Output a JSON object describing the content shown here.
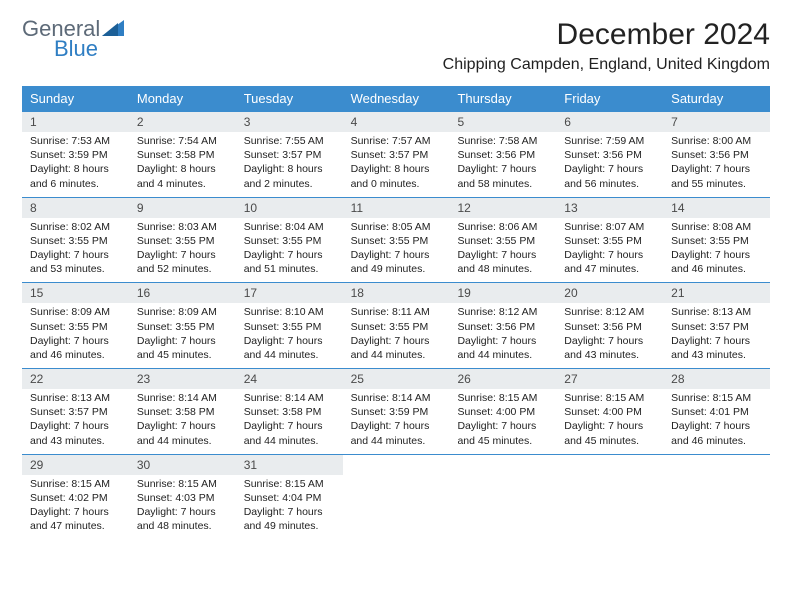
{
  "logo": {
    "word1": "General",
    "word2": "Blue"
  },
  "header": {
    "title": "December 2024",
    "subtitle": "Chipping Campden, England, United Kingdom"
  },
  "calendar": {
    "header_bg": "#3b8cce",
    "header_fg": "#ffffff",
    "daynum_bg": "#e9ecee",
    "week_border": "#3b8cce",
    "day_names": [
      "Sunday",
      "Monday",
      "Tuesday",
      "Wednesday",
      "Thursday",
      "Friday",
      "Saturday"
    ],
    "days": [
      {
        "n": "1",
        "sunrise": "Sunrise: 7:53 AM",
        "sunset": "Sunset: 3:59 PM",
        "daylight": "Daylight: 8 hours and 6 minutes."
      },
      {
        "n": "2",
        "sunrise": "Sunrise: 7:54 AM",
        "sunset": "Sunset: 3:58 PM",
        "daylight": "Daylight: 8 hours and 4 minutes."
      },
      {
        "n": "3",
        "sunrise": "Sunrise: 7:55 AM",
        "sunset": "Sunset: 3:57 PM",
        "daylight": "Daylight: 8 hours and 2 minutes."
      },
      {
        "n": "4",
        "sunrise": "Sunrise: 7:57 AM",
        "sunset": "Sunset: 3:57 PM",
        "daylight": "Daylight: 8 hours and 0 minutes."
      },
      {
        "n": "5",
        "sunrise": "Sunrise: 7:58 AM",
        "sunset": "Sunset: 3:56 PM",
        "daylight": "Daylight: 7 hours and 58 minutes."
      },
      {
        "n": "6",
        "sunrise": "Sunrise: 7:59 AM",
        "sunset": "Sunset: 3:56 PM",
        "daylight": "Daylight: 7 hours and 56 minutes."
      },
      {
        "n": "7",
        "sunrise": "Sunrise: 8:00 AM",
        "sunset": "Sunset: 3:56 PM",
        "daylight": "Daylight: 7 hours and 55 minutes."
      },
      {
        "n": "8",
        "sunrise": "Sunrise: 8:02 AM",
        "sunset": "Sunset: 3:55 PM",
        "daylight": "Daylight: 7 hours and 53 minutes."
      },
      {
        "n": "9",
        "sunrise": "Sunrise: 8:03 AM",
        "sunset": "Sunset: 3:55 PM",
        "daylight": "Daylight: 7 hours and 52 minutes."
      },
      {
        "n": "10",
        "sunrise": "Sunrise: 8:04 AM",
        "sunset": "Sunset: 3:55 PM",
        "daylight": "Daylight: 7 hours and 51 minutes."
      },
      {
        "n": "11",
        "sunrise": "Sunrise: 8:05 AM",
        "sunset": "Sunset: 3:55 PM",
        "daylight": "Daylight: 7 hours and 49 minutes."
      },
      {
        "n": "12",
        "sunrise": "Sunrise: 8:06 AM",
        "sunset": "Sunset: 3:55 PM",
        "daylight": "Daylight: 7 hours and 48 minutes."
      },
      {
        "n": "13",
        "sunrise": "Sunrise: 8:07 AM",
        "sunset": "Sunset: 3:55 PM",
        "daylight": "Daylight: 7 hours and 47 minutes."
      },
      {
        "n": "14",
        "sunrise": "Sunrise: 8:08 AM",
        "sunset": "Sunset: 3:55 PM",
        "daylight": "Daylight: 7 hours and 46 minutes."
      },
      {
        "n": "15",
        "sunrise": "Sunrise: 8:09 AM",
        "sunset": "Sunset: 3:55 PM",
        "daylight": "Daylight: 7 hours and 46 minutes."
      },
      {
        "n": "16",
        "sunrise": "Sunrise: 8:09 AM",
        "sunset": "Sunset: 3:55 PM",
        "daylight": "Daylight: 7 hours and 45 minutes."
      },
      {
        "n": "17",
        "sunrise": "Sunrise: 8:10 AM",
        "sunset": "Sunset: 3:55 PM",
        "daylight": "Daylight: 7 hours and 44 minutes."
      },
      {
        "n": "18",
        "sunrise": "Sunrise: 8:11 AM",
        "sunset": "Sunset: 3:55 PM",
        "daylight": "Daylight: 7 hours and 44 minutes."
      },
      {
        "n": "19",
        "sunrise": "Sunrise: 8:12 AM",
        "sunset": "Sunset: 3:56 PM",
        "daylight": "Daylight: 7 hours and 44 minutes."
      },
      {
        "n": "20",
        "sunrise": "Sunrise: 8:12 AM",
        "sunset": "Sunset: 3:56 PM",
        "daylight": "Daylight: 7 hours and 43 minutes."
      },
      {
        "n": "21",
        "sunrise": "Sunrise: 8:13 AM",
        "sunset": "Sunset: 3:57 PM",
        "daylight": "Daylight: 7 hours and 43 minutes."
      },
      {
        "n": "22",
        "sunrise": "Sunrise: 8:13 AM",
        "sunset": "Sunset: 3:57 PM",
        "daylight": "Daylight: 7 hours and 43 minutes."
      },
      {
        "n": "23",
        "sunrise": "Sunrise: 8:14 AM",
        "sunset": "Sunset: 3:58 PM",
        "daylight": "Daylight: 7 hours and 44 minutes."
      },
      {
        "n": "24",
        "sunrise": "Sunrise: 8:14 AM",
        "sunset": "Sunset: 3:58 PM",
        "daylight": "Daylight: 7 hours and 44 minutes."
      },
      {
        "n": "25",
        "sunrise": "Sunrise: 8:14 AM",
        "sunset": "Sunset: 3:59 PM",
        "daylight": "Daylight: 7 hours and 44 minutes."
      },
      {
        "n": "26",
        "sunrise": "Sunrise: 8:15 AM",
        "sunset": "Sunset: 4:00 PM",
        "daylight": "Daylight: 7 hours and 45 minutes."
      },
      {
        "n": "27",
        "sunrise": "Sunrise: 8:15 AM",
        "sunset": "Sunset: 4:00 PM",
        "daylight": "Daylight: 7 hours and 45 minutes."
      },
      {
        "n": "28",
        "sunrise": "Sunrise: 8:15 AM",
        "sunset": "Sunset: 4:01 PM",
        "daylight": "Daylight: 7 hours and 46 minutes."
      },
      {
        "n": "29",
        "sunrise": "Sunrise: 8:15 AM",
        "sunset": "Sunset: 4:02 PM",
        "daylight": "Daylight: 7 hours and 47 minutes."
      },
      {
        "n": "30",
        "sunrise": "Sunrise: 8:15 AM",
        "sunset": "Sunset: 4:03 PM",
        "daylight": "Daylight: 7 hours and 48 minutes."
      },
      {
        "n": "31",
        "sunrise": "Sunrise: 8:15 AM",
        "sunset": "Sunset: 4:04 PM",
        "daylight": "Daylight: 7 hours and 49 minutes."
      }
    ],
    "first_weekday": 0,
    "weeks": 5
  }
}
